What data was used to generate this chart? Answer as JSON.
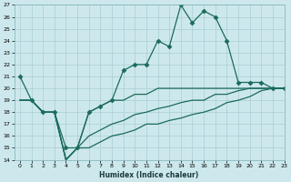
{
  "xlabel": "Humidex (Indice chaleur)",
  "bg_color": "#cde8ec",
  "grid_color": "#a8cdd4",
  "line_color": "#1a6b5a",
  "ylim": [
    14,
    27
  ],
  "xlim": [
    -0.5,
    23
  ],
  "yticks": [
    14,
    15,
    16,
    17,
    18,
    19,
    20,
    21,
    22,
    23,
    24,
    25,
    26,
    27
  ],
  "xticks": [
    0,
    1,
    2,
    3,
    4,
    5,
    6,
    7,
    8,
    9,
    10,
    11,
    12,
    13,
    14,
    15,
    16,
    17,
    18,
    19,
    20,
    21,
    22,
    23
  ],
  "series": [
    {
      "x": [
        0,
        1,
        2,
        3,
        4,
        5,
        6,
        7,
        8,
        9,
        10,
        11,
        12,
        13,
        14,
        15,
        16,
        17,
        18,
        19,
        20,
        21,
        22,
        23
      ],
      "y": [
        21,
        19,
        18,
        18,
        15,
        15,
        18,
        18.5,
        19,
        21.5,
        22,
        22,
        24,
        23.5,
        27,
        25.5,
        26.5,
        26,
        24,
        20.5,
        20.5,
        20.5,
        20,
        20
      ],
      "marker": "D",
      "ms": 2.5,
      "lw": 0.9
    },
    {
      "x": [
        0,
        1,
        2,
        3,
        4,
        5,
        6,
        7,
        8,
        9,
        10,
        11,
        12,
        13,
        14,
        15,
        16,
        17,
        18,
        19,
        20,
        21,
        22,
        23
      ],
      "y": [
        19,
        19,
        18,
        18,
        14,
        15,
        18,
        18.5,
        19,
        19,
        19.5,
        19.5,
        20,
        20,
        20,
        20,
        20,
        20,
        20,
        20,
        20,
        20,
        20,
        20
      ],
      "marker": null,
      "ms": 0,
      "lw": 0.9
    },
    {
      "x": [
        0,
        1,
        2,
        3,
        4,
        5,
        6,
        7,
        8,
        9,
        10,
        11,
        12,
        13,
        14,
        15,
        16,
        17,
        18,
        19,
        20,
        21,
        22,
        23
      ],
      "y": [
        19,
        19,
        18,
        18,
        14,
        15,
        16,
        16.5,
        17,
        17.3,
        17.8,
        18,
        18.3,
        18.5,
        18.8,
        19,
        19,
        19.5,
        19.5,
        19.8,
        20,
        20,
        20,
        20
      ],
      "marker": null,
      "ms": 0,
      "lw": 0.9
    },
    {
      "x": [
        0,
        1,
        2,
        3,
        4,
        5,
        6,
        7,
        8,
        9,
        10,
        11,
        12,
        13,
        14,
        15,
        16,
        17,
        18,
        19,
        20,
        21,
        22,
        23
      ],
      "y": [
        19,
        19,
        18,
        18,
        14,
        15,
        15,
        15.5,
        16,
        16.2,
        16.5,
        17,
        17,
        17.3,
        17.5,
        17.8,
        18,
        18.3,
        18.8,
        19,
        19.3,
        19.8,
        20,
        20
      ],
      "marker": null,
      "ms": 0,
      "lw": 0.9
    }
  ]
}
